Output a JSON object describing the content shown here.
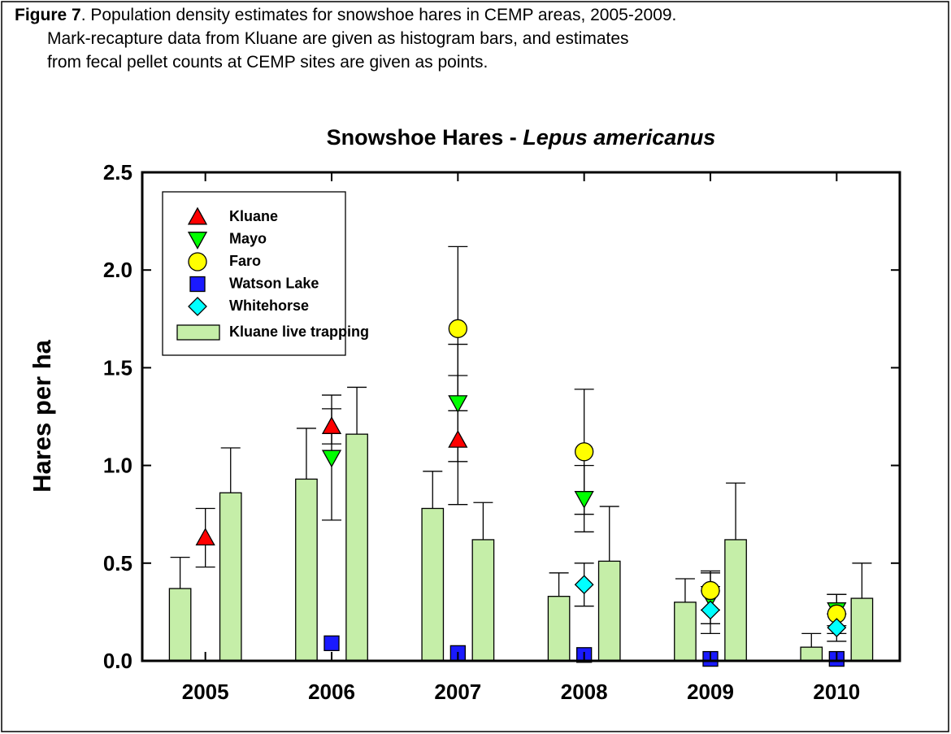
{
  "caption": {
    "label": "Figure 7",
    "lines": [
      ". Population density estimates for snowshoe hares in CEMP areas, 2005-2009.",
      "Mark-recapture data from Kluane are given as histogram bars, and estimates",
      "from fecal pellet counts at CEMP sites are given as points."
    ]
  },
  "chart_data": {
    "type": "bar",
    "title": "Snowshoe Hares -",
    "title_species": "Lepus americanus",
    "y_label": "Hares per ha",
    "xlim": [
      2004.5,
      2010.5
    ],
    "xticks": [
      2005,
      2006,
      2007,
      2008,
      2009,
      2010
    ],
    "ylim": [
      0,
      2.5
    ],
    "yticks": [
      {
        "value": 0,
        "label": "0.0"
      },
      0.5,
      {
        "value": 1,
        "label": "1.0"
      },
      1.5,
      {
        "value": 2,
        "label": "2.0"
      },
      2.5
    ],
    "legend_position": "upper left",
    "series": [
      {
        "name": "Kluane",
        "type": "scatter",
        "marker": "triangle-up",
        "color": "#ff0000",
        "x": [
          2005,
          2006,
          2007
        ],
        "values": [
          0.63,
          1.2,
          1.13
        ],
        "errors": [
          0.15,
          0.09,
          0.33
        ]
      },
      {
        "name": "Mayo",
        "type": "scatter",
        "marker": "triangle-down",
        "color": "#00ff00",
        "x": [
          2006,
          2007,
          2008,
          2009,
          2010
        ],
        "values": [
          1.04,
          1.32,
          0.83,
          0.32,
          0.26
        ],
        "errors": [
          0.32,
          0.3,
          0.17,
          0.13,
          0.08
        ]
      },
      {
        "name": "Faro",
        "type": "scatter",
        "marker": "circle",
        "color": "#ffff00",
        "x": [
          2007,
          2008,
          2009,
          2010
        ],
        "values": [
          1.7,
          1.07,
          0.36,
          0.24
        ],
        "errors": [
          0.42,
          0.32,
          0.1,
          0.1
        ]
      },
      {
        "name": "Watson Lake",
        "type": "scatter",
        "marker": "square",
        "color": "#1a1aff",
        "x": [
          2006,
          2007,
          2008,
          2009,
          2010
        ],
        "values": [
          0.09,
          0.04,
          0.03,
          0.01,
          0.01
        ]
      },
      {
        "name": "Whitehorse",
        "type": "scatter",
        "marker": "diamond",
        "color": "#00ffff",
        "x": [
          2008,
          2009,
          2010
        ],
        "values": [
          0.39,
          0.26,
          0.17
        ],
        "errors": [
          0.11,
          0.12,
          0.07
        ]
      },
      {
        "name": "Kluane live trapping",
        "type": "bar",
        "color": "#c5eea8",
        "x": [
          2004.8,
          2005.2,
          2005.8,
          2006.2,
          2006.8,
          2007.2,
          2007.8,
          2008.2,
          2008.8,
          2009.2,
          2009.8,
          2010.2
        ],
        "values": [
          0.37,
          0.86,
          0.93,
          1.16,
          0.78,
          0.62,
          0.33,
          0.51,
          0.3,
          0.62,
          0.07,
          0.32
        ],
        "errors": [
          0.16,
          0.23,
          0.26,
          0.24,
          0.19,
          0.19,
          0.12,
          0.28,
          0.12,
          0.29,
          0.07,
          0.18
        ]
      }
    ]
  }
}
